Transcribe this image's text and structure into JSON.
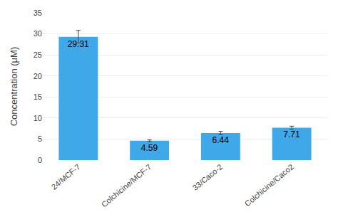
{
  "chart_data": {
    "type": "bar",
    "categories": [
      "24/MCF-7",
      "Colchicine/MCF-7",
      "33/Caco-2",
      "Colchicine/Caco2"
    ],
    "values": [
      29.31,
      4.59,
      6.44,
      7.71
    ],
    "errors": [
      1.5,
      0.2,
      0.4,
      0.35
    ],
    "color": "#3EA8E8",
    "ylabel": "Concentration (μM)",
    "ylim": [
      0,
      35
    ],
    "yticks": [
      0,
      5,
      10,
      15,
      20,
      25,
      30,
      35
    ],
    "grid": true,
    "data_labels": true
  }
}
